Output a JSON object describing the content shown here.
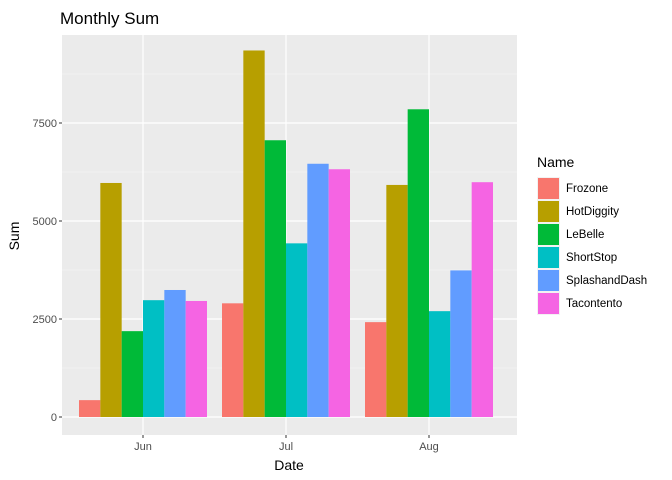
{
  "chart_data": {
    "type": "bar",
    "title": "Monthly Sum",
    "xlabel": "Date",
    "ylabel": "Sum",
    "categories": [
      "Jun",
      "Jul",
      "Aug"
    ],
    "ylim": [
      0,
      9800
    ],
    "yticks": [
      0,
      2500,
      5000,
      7500
    ],
    "ytick_labels": [
      "0",
      "2500",
      "5000",
      "7500"
    ],
    "grid": true,
    "legend_title": "Name",
    "legend_position": "right",
    "series": [
      {
        "name": "Frozone",
        "color": "#F8766D",
        "values": [
          430,
          2900,
          2420
        ]
      },
      {
        "name": "HotDiggity",
        "color": "#B79F00",
        "values": [
          5970,
          9350,
          5920
        ]
      },
      {
        "name": "LeBelle",
        "color": "#00BA38",
        "values": [
          2190,
          7060,
          7850
        ]
      },
      {
        "name": "ShortStop",
        "color": "#00BFC4",
        "values": [
          2980,
          4430,
          2700
        ]
      },
      {
        "name": "SplashandDash",
        "color": "#619CFF",
        "values": [
          3240,
          6460,
          3740
        ]
      },
      {
        "name": "Tacontento",
        "color": "#F564E3",
        "values": [
          2960,
          6320,
          5990
        ]
      }
    ]
  }
}
